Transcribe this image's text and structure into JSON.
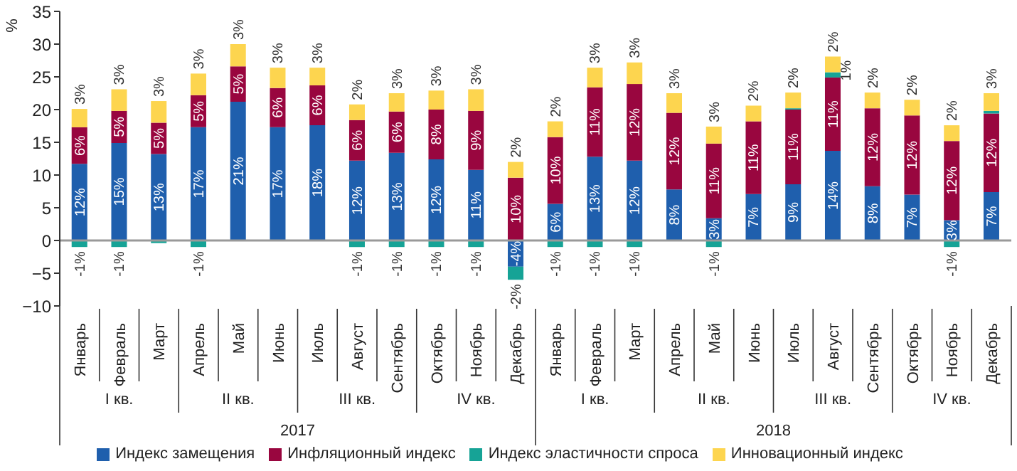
{
  "chart_data": {
    "type": "bar",
    "stacked": true,
    "ylabel": "%",
    "ylim": [
      -10,
      35
    ],
    "yticks": [
      -10,
      -5,
      0,
      5,
      10,
      15,
      20,
      25,
      30,
      35
    ],
    "legend": "bottom",
    "grid": false,
    "categories": [
      "Январь",
      "Февраль",
      "Март",
      "Апрель",
      "Май",
      "Июнь",
      "Июль",
      "Август",
      "Сентябрь",
      "Октябрь",
      "Ноябрь",
      "Декабрь",
      "Январь",
      "Февраль",
      "Март",
      "Апрель",
      "Май",
      "Июнь",
      "Июль",
      "Август",
      "Сентябрь",
      "Октябрь",
      "Ноябрь",
      "Декабрь"
    ],
    "annotations": [
      "I кв.",
      "II кв.",
      "III кв.",
      "IV кв.",
      "I кв.",
      "II кв.",
      "III кв.",
      "IV кв.",
      "2017",
      "2018"
    ],
    "ref_lines": [
      {
        "axis": "y",
        "value": 0,
        "color": "#999999"
      }
    ],
    "series": [
      {
        "name": "Индекс замещения",
        "color": "#1f5fad",
        "values": [
          11.7,
          14.9,
          13.2,
          17.3,
          21.2,
          17.3,
          17.6,
          12.2,
          13.4,
          12.4,
          10.8,
          -4,
          5.6,
          12.8,
          12.2,
          7.8,
          3.4,
          7.1,
          8.6,
          13.7,
          8.3,
          7.0,
          3.1,
          7.4
        ],
        "value_labels": [
          "12%",
          "15%",
          "13%",
          "17%",
          "21%",
          "17%",
          "18%",
          "12%",
          "13%",
          "12%",
          "11%",
          "-4%",
          "6%",
          "13%",
          "12%",
          "8%",
          "3%",
          "7%",
          "9%",
          "14%",
          "8%",
          "7%",
          "3%",
          "7%"
        ]
      },
      {
        "name": "Инфляционный индекс",
        "color": "#99063f",
        "values": [
          5.6,
          4.9,
          4.8,
          4.9,
          5.4,
          6.0,
          6.1,
          6.2,
          6.3,
          7.6,
          9.0,
          9.6,
          10.2,
          10.6,
          11.7,
          11.7,
          11.4,
          11.1,
          11.4,
          11.2,
          11.9,
          12.1,
          12.1,
          12.0
        ],
        "value_labels": [
          "6%",
          "5%",
          "5%",
          "5%",
          "5%",
          "6%",
          "6%",
          "6%",
          "6%",
          "8%",
          "9%",
          "10%",
          "10%",
          "11%",
          "12%",
          "12%",
          "11%",
          "11%",
          "11%",
          "11%",
          "12%",
          "12%",
          "12%",
          "12%"
        ]
      },
      {
        "name": "Индекс эластичности спроса",
        "color": "#16a396",
        "values": [
          -1,
          -1,
          -0.4,
          -1,
          null,
          null,
          null,
          -1,
          -1,
          -1,
          -1,
          -2,
          -1,
          -1,
          -1,
          null,
          -1,
          null,
          0.2,
          0.8,
          -0.1,
          -0.1,
          -1,
          0.4
        ],
        "value_labels": [
          "-1%",
          "-1%",
          null,
          "-1%",
          null,
          null,
          null,
          "-1%",
          "-1%",
          "-1%",
          "-1%",
          "-2%",
          "-1%",
          "-1%",
          "-1%",
          null,
          "-1%",
          null,
          null,
          "1%",
          null,
          null,
          "-1%",
          null
        ]
      },
      {
        "name": "Инновационный индекс",
        "color": "#fdd54f",
        "values": [
          2.8,
          3.3,
          3.3,
          3.3,
          3.4,
          3.1,
          2.7,
          2.4,
          2.8,
          2.9,
          3.3,
          2.4,
          2.4,
          3.0,
          3.3,
          3.0,
          2.6,
          2.4,
          2.4,
          2.4,
          2.4,
          2.4,
          2.4,
          2.7
        ],
        "value_labels": [
          "3%",
          "3%",
          "3%",
          "3%",
          "3%",
          "3%",
          "3%",
          "2%",
          "3%",
          "3%",
          "3%",
          "2%",
          "2%",
          "3%",
          "3%",
          "3%",
          "3%",
          "2%",
          "2%",
          "2%",
          "2%",
          "2%",
          "2%",
          "3%"
        ]
      }
    ]
  }
}
